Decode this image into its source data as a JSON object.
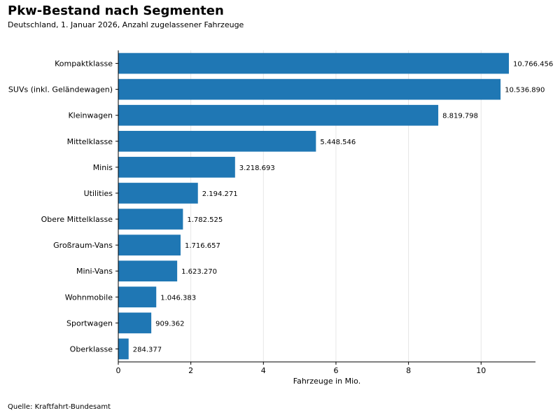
{
  "chart_data": {
    "type": "bar",
    "orientation": "horizontal",
    "title": "Pkw-Bestand nach Segmenten",
    "subtitle": "Deutschland, 1. Januar 2026, Anzahl zugelassener Fahrzeuge",
    "source": "Quelle: Kraftfahrt-Bundesamt",
    "xlabel": "Fahrzeuge in Mio.",
    "ylabel": "",
    "xlim": [
      0,
      11.5
    ],
    "xticks": [
      0,
      2,
      4,
      6,
      8,
      10
    ],
    "grid": "vertical",
    "color": "#1f77b4",
    "categories": [
      "Kompaktklasse",
      "SUVs (inkl. Geländewagen)",
      "Kleinwagen",
      "Mittelklasse",
      "Minis",
      "Utilities",
      "Obere Mittelklasse",
      "Großraum-Vans",
      "Mini-Vans",
      "Wohnmobile",
      "Sportwagen",
      "Oberklasse"
    ],
    "values": [
      10766456,
      10536890,
      8819798,
      5448546,
      3218693,
      2194271,
      1782525,
      1716657,
      1623270,
      1046383,
      909362,
      284377
    ],
    "data_labels": [
      "10.766.456",
      "10.536.890",
      "8.819.798",
      "5.448.546",
      "3.218.693",
      "2.194.271",
      "1.782.525",
      "1.716.657",
      "1.623.270",
      "1.046.383",
      "909.362",
      "284.377"
    ]
  }
}
